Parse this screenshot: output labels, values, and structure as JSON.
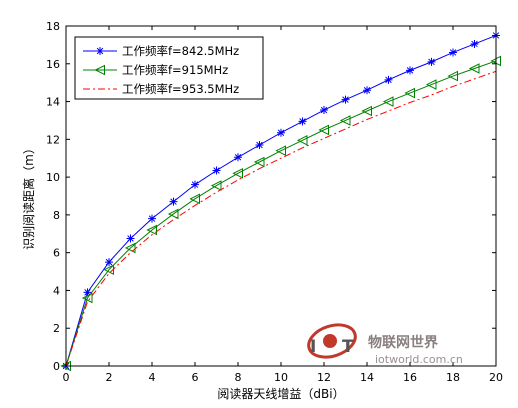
{
  "chart_data": {
    "type": "line",
    "xlabel": "阅读器天线增益（dBi）",
    "ylabel": "识别阅读距离（m）",
    "xlim": [
      0,
      20
    ],
    "ylim": [
      0,
      18
    ],
    "xticks": [
      "0",
      "2",
      "4",
      "6",
      "8",
      "10",
      "12",
      "14",
      "16",
      "18",
      "20"
    ],
    "yticks": [
      "0",
      "2",
      "4",
      "6",
      "8",
      "10",
      "12",
      "14",
      "16",
      "18"
    ],
    "x": [
      0,
      1,
      2,
      3,
      4,
      5,
      6,
      7,
      8,
      9,
      10,
      11,
      12,
      13,
      14,
      15,
      16,
      17,
      18,
      19,
      20
    ],
    "series": [
      {
        "name": "工作频率f=842.5MHz",
        "color": "#0000ff",
        "style": "solid",
        "marker": "asterisk",
        "values": [
          0,
          3.9,
          5.5,
          6.75,
          7.8,
          8.7,
          9.6,
          10.35,
          11.05,
          11.7,
          12.35,
          12.95,
          13.55,
          14.1,
          14.6,
          15.15,
          15.65,
          16.1,
          16.6,
          17.05,
          17.5
        ]
      },
      {
        "name": "工作频率f=915MHz",
        "color": "#008000",
        "style": "solid",
        "marker": "triangle-left",
        "values": [
          0,
          3.6,
          5.1,
          6.25,
          7.2,
          8.05,
          8.85,
          9.55,
          10.2,
          10.8,
          11.4,
          11.95,
          12.5,
          13.0,
          13.5,
          14.0,
          14.45,
          14.9,
          15.35,
          15.75,
          16.15
        ]
      },
      {
        "name": "工作频率f=953.5MHz",
        "color": "#ff0000",
        "style": "dashdot",
        "marker": "none",
        "values": [
          0,
          3.4,
          4.9,
          6.0,
          6.95,
          7.75,
          8.5,
          9.2,
          9.85,
          10.45,
          11.0,
          11.55,
          12.05,
          12.55,
          13.05,
          13.5,
          13.95,
          14.35,
          14.8,
          15.2,
          15.6
        ]
      }
    ],
    "legend_position": "top-left",
    "grid": false
  },
  "watermark": {
    "brand": "物联网世界",
    "url": "iotworld.com.cn",
    "logo_text": "IOT",
    "logo_icon": "iot-logo-icon",
    "logo_color": "#c0392b"
  }
}
